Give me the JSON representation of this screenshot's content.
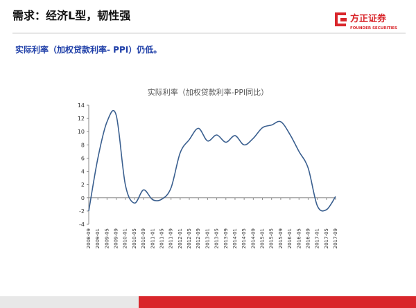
{
  "header": {
    "title": "需求：经济L型，韧性强",
    "logo_name": "方正证券",
    "logo_english": "FOUNDER SECURITIES"
  },
  "subtitle": "实际利率（加权贷款利率- PPI）仍低。",
  "chart_data": {
    "type": "line",
    "title": "实际利率（加权贷款利率-PPI同比）",
    "categories": [
      "2008-09",
      "2009-01",
      "2009-05",
      "2009-09",
      "2010-01",
      "2010-05",
      "2010-09",
      "2011-01",
      "2011-05",
      "2011-09",
      "2012-01",
      "2012-05",
      "2012-09",
      "2013-01",
      "2013-05",
      "2013-09",
      "2014-01",
      "2014-05",
      "2014-09",
      "2015-01",
      "2015-05",
      "2015-09",
      "2016-01",
      "2016-05",
      "2016-09",
      "2017-01",
      "2017-05",
      "2017-09"
    ],
    "series": [
      {
        "name": "实际利率",
        "color": "#3a5f8f",
        "values": [
          -2,
          6,
          11.5,
          12.5,
          2,
          -0.8,
          1.2,
          -0.3,
          -0.2,
          1.5,
          6.8,
          8.8,
          10.5,
          8.6,
          9.5,
          8.4,
          9.4,
          8.0,
          9.0,
          10.6,
          11.0,
          11.5,
          9.6,
          7.0,
          4.5,
          -1.2,
          -1.8,
          0.2
        ]
      }
    ],
    "ylim": [
      -4,
      14
    ],
    "yticks": [
      -4,
      -2,
      0,
      2,
      4,
      6,
      8,
      10,
      12,
      14
    ]
  }
}
